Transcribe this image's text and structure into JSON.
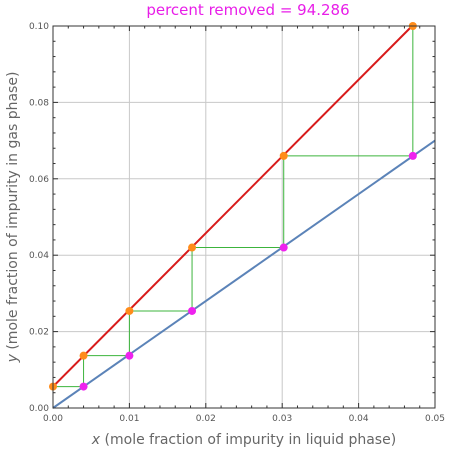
{
  "title": "percent removed = 94.286",
  "colors": {
    "title": "#e81ee8",
    "equilibrium_line": "#d81b1b",
    "operating_line": "#5b83b8",
    "stages": "#3cb43c",
    "equilibrium_points": "#ff8c1a",
    "operating_points": "#ee22ee",
    "grid": "#c8c8c8",
    "frame": "#333333"
  },
  "chart_data": {
    "type": "line",
    "xlabel_var": "x",
    "xlabel_rest": " (mole fraction of impurity in liquid phase)",
    "ylabel_var": "y",
    "ylabel_rest": " (mole fraction of impurity in gas phase)",
    "xlim": [
      0,
      0.05
    ],
    "ylim": [
      0,
      0.1
    ],
    "x_ticks": [
      0,
      0.01,
      0.02,
      0.03,
      0.04,
      0.05
    ],
    "x_tick_labels": [
      "0.00",
      "0.01",
      "0.02",
      "0.03",
      "0.04",
      "0.05"
    ],
    "y_ticks": [
      0,
      0.02,
      0.04,
      0.06,
      0.08,
      0.1
    ],
    "y_tick_labels": [
      "0.00",
      "0.02",
      "0.04",
      "0.06",
      "0.08",
      "0.10"
    ],
    "grid": true,
    "equilibrium_line": {
      "x": [
        0,
        0.047
      ],
      "y": [
        0.0056,
        0.1
      ]
    },
    "operating_line": {
      "x": [
        0,
        0.05
      ],
      "y": [
        0,
        0.07
      ]
    },
    "equilibrium_points": [
      {
        "x": 0.0,
        "y": 0.0056
      },
      {
        "x": 0.004,
        "y": 0.0137
      },
      {
        "x": 0.01,
        "y": 0.0254
      },
      {
        "x": 0.0182,
        "y": 0.042
      },
      {
        "x": 0.0302,
        "y": 0.066
      },
      {
        "x": 0.0471,
        "y": 0.1
      }
    ],
    "operating_points": [
      {
        "x": 0.004,
        "y": 0.0056
      },
      {
        "x": 0.01,
        "y": 0.0137
      },
      {
        "x": 0.0182,
        "y": 0.0254
      },
      {
        "x": 0.0302,
        "y": 0.042
      },
      {
        "x": 0.0471,
        "y": 0.066
      }
    ]
  }
}
